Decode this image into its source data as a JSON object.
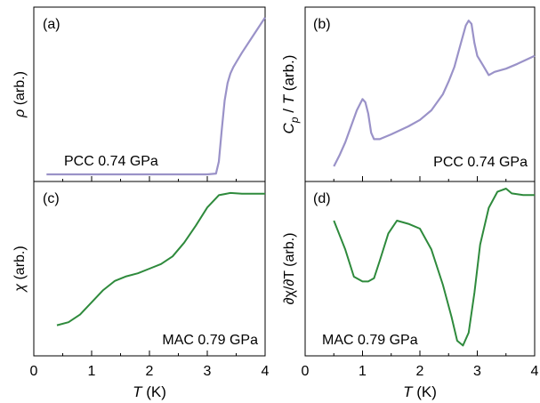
{
  "colors": {
    "purple": "#9a92c8",
    "green": "#2e8a3c"
  },
  "x_axis": {
    "ticks": [
      "0",
      "1",
      "2",
      "3",
      "4"
    ],
    "label_var": "T",
    "label_unit": "(K)",
    "range": [
      0,
      4
    ]
  },
  "chart_data": [
    {
      "panel": "(a)",
      "type": "line",
      "ylabel_var": "ρ",
      "ylabel_unit": "(arb.)",
      "annotation": "PCC 0.74 GPa",
      "color": "purple",
      "ylim": [
        0,
        1
      ],
      "x": [
        0.22,
        1.0,
        2.0,
        3.0,
        3.15,
        3.2,
        3.25,
        3.3,
        3.35,
        3.4,
        3.45,
        3.5,
        3.6,
        3.8,
        4.0
      ],
      "y": [
        0.0,
        0.0,
        0.0,
        0.0,
        0.005,
        0.08,
        0.28,
        0.46,
        0.57,
        0.63,
        0.67,
        0.7,
        0.76,
        0.87,
        0.98
      ]
    },
    {
      "panel": "(b)",
      "type": "line",
      "ylabel_var1": "C",
      "ylabel_sub": "p",
      "ylabel_var2": "T",
      "ylabel_unit": "(arb.)",
      "annotation": "PCC 0.74 GPa",
      "color": "purple",
      "ylim": [
        0,
        1
      ],
      "x": [
        0.5,
        0.6,
        0.7,
        0.8,
        0.9,
        1.0,
        1.05,
        1.1,
        1.15,
        1.2,
        1.3,
        1.5,
        1.8,
        2.0,
        2.2,
        2.4,
        2.5,
        2.6,
        2.7,
        2.8,
        2.85,
        2.9,
        2.95,
        3.0,
        3.1,
        3.2,
        3.3,
        3.5,
        3.7,
        4.0
      ],
      "y": [
        0.05,
        0.12,
        0.2,
        0.3,
        0.4,
        0.47,
        0.45,
        0.38,
        0.26,
        0.22,
        0.22,
        0.25,
        0.3,
        0.34,
        0.4,
        0.5,
        0.58,
        0.67,
        0.8,
        0.93,
        0.96,
        0.94,
        0.82,
        0.74,
        0.68,
        0.62,
        0.64,
        0.66,
        0.69,
        0.74
      ]
    },
    {
      "panel": "(c)",
      "type": "line",
      "ylabel_var": "χ",
      "ylabel_unit": "(arb.)",
      "annotation": "MAC 0.79 GPa",
      "color": "green",
      "ylim": [
        0,
        1
      ],
      "x": [
        0.4,
        0.6,
        0.8,
        1.0,
        1.2,
        1.4,
        1.6,
        1.8,
        2.0,
        2.2,
        2.4,
        2.6,
        2.8,
        3.0,
        3.2,
        3.4,
        3.6,
        3.8,
        4.0
      ],
      "y": [
        0.13,
        0.15,
        0.2,
        0.28,
        0.36,
        0.42,
        0.45,
        0.47,
        0.5,
        0.53,
        0.58,
        0.67,
        0.78,
        0.9,
        0.98,
        0.995,
        0.99,
        0.99,
        0.99
      ]
    },
    {
      "panel": "(d)",
      "type": "line",
      "ylabel_text": "∂χ/∂T (arb.)",
      "annotation": "MAC 0.79 GPa",
      "color": "green",
      "ylim": [
        0,
        1
      ],
      "x": [
        0.5,
        0.7,
        0.85,
        1.0,
        1.1,
        1.2,
        1.3,
        1.45,
        1.6,
        1.8,
        2.0,
        2.2,
        2.4,
        2.55,
        2.65,
        2.75,
        2.85,
        2.95,
        3.05,
        3.2,
        3.35,
        3.5,
        3.6,
        3.8,
        4.0
      ],
      "y": [
        0.8,
        0.62,
        0.45,
        0.42,
        0.42,
        0.44,
        0.55,
        0.72,
        0.8,
        0.78,
        0.75,
        0.62,
        0.4,
        0.2,
        0.05,
        0.02,
        0.1,
        0.35,
        0.65,
        0.88,
        0.98,
        1.0,
        0.97,
        0.96,
        0.96
      ]
    }
  ]
}
